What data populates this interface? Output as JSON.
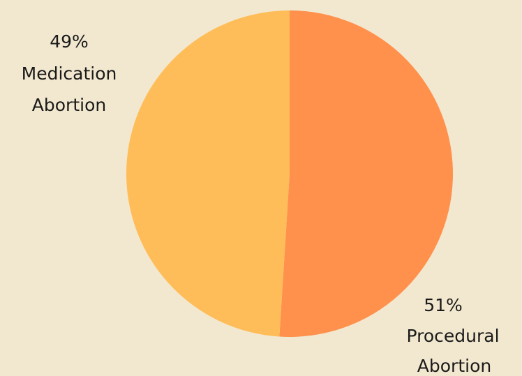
{
  "chart_data": {
    "type": "pie",
    "background_color": "#F2E8CF",
    "slices": [
      {
        "percent_label": "51%",
        "name_line1": "Procedural",
        "name_line2": "Abortion",
        "value": 51,
        "color": "#FF914D"
      },
      {
        "percent_label": "49%",
        "name_line1": "Medication",
        "name_line2": "Abortion",
        "value": 49,
        "color": "#FFBD59"
      }
    ]
  }
}
